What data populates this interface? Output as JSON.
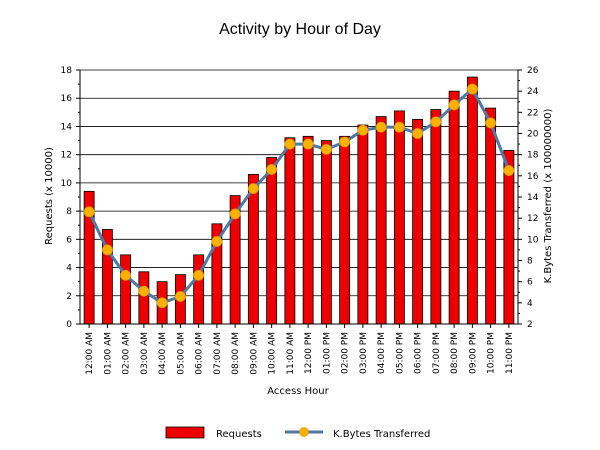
{
  "chart_data": {
    "type": "bar",
    "title": "Activity by Hour of Day",
    "xlabel": "Access Hour",
    "ylabel": "Requests (x 10000)",
    "y2label": "K.Bytes Transferred (x 100000000)",
    "ylim": [
      0,
      18
    ],
    "y2lim": [
      2,
      26
    ],
    "yticks": [
      0,
      2,
      4,
      6,
      8,
      10,
      12,
      14,
      16,
      18
    ],
    "y2ticks": [
      2,
      4,
      6,
      8,
      10,
      12,
      14,
      16,
      18,
      20,
      22,
      24,
      26
    ],
    "grid": true,
    "legend_position": "bottom",
    "categories": [
      "12:00 AM",
      "01:00 AM",
      "02:00 AM",
      "03:00 AM",
      "04:00 AM",
      "05:00 AM",
      "06:00 AM",
      "07:00 AM",
      "08:00 AM",
      "09:00 AM",
      "10:00 AM",
      "11:00 AM",
      "12:00 PM",
      "01:00 PM",
      "02:00 PM",
      "03:00 PM",
      "04:00 PM",
      "05:00 PM",
      "06:00 PM",
      "07:00 PM",
      "08:00 PM",
      "09:00 PM",
      "10:00 PM",
      "11:00 PM"
    ],
    "series": [
      {
        "name": "Requests",
        "kind": "bar",
        "axis": "left",
        "color": "#ee0000",
        "values": [
          9.4,
          6.7,
          4.9,
          3.7,
          3.0,
          3.5,
          4.9,
          7.1,
          9.1,
          10.6,
          11.8,
          13.2,
          13.3,
          13.0,
          13.3,
          14.1,
          14.7,
          15.1,
          14.5,
          15.2,
          16.5,
          17.5,
          15.3,
          12.3
        ]
      },
      {
        "name": "K.Bytes Transferred",
        "kind": "line",
        "axis": "right",
        "color": "#4d79a6",
        "marker_color": "#ffb000",
        "values": [
          12.6,
          9.0,
          6.6,
          5.1,
          4.0,
          4.6,
          6.6,
          9.8,
          12.4,
          14.8,
          16.6,
          19.0,
          19.0,
          18.5,
          19.2,
          20.3,
          20.6,
          20.6,
          20.0,
          21.1,
          22.7,
          24.2,
          21.0,
          16.5
        ]
      }
    ]
  }
}
